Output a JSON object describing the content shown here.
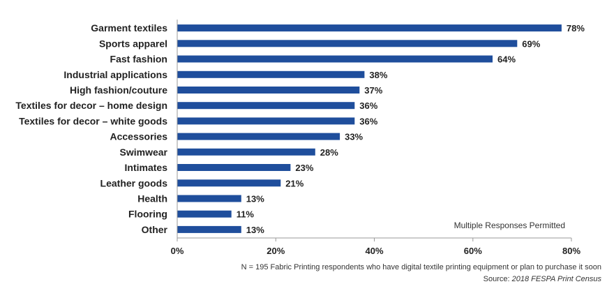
{
  "chart_data": {
    "type": "bar",
    "orientation": "horizontal",
    "categories": [
      "Garment textiles",
      "Sports apparel",
      "Fast fashion",
      "Industrial applications",
      "High fashion/couture",
      "Textiles for decor – home design",
      "Textiles for decor – white goods",
      "Accessories",
      "Swimwear",
      "Intimates",
      "Leather goods",
      "Health",
      "Flooring",
      "Other"
    ],
    "values": [
      78,
      69,
      64,
      38,
      37,
      36,
      36,
      33,
      28,
      23,
      21,
      13,
      11,
      13
    ],
    "value_labels": [
      "78%",
      "69%",
      "64%",
      "38%",
      "37%",
      "36%",
      "36%",
      "33%",
      "28%",
      "23%",
      "21%",
      "13%",
      "11%",
      "13%"
    ],
    "xlim": [
      0,
      80
    ],
    "xticks": [
      "0%",
      "20%",
      "40%",
      "60%",
      "80%"
    ],
    "bar_color": "#1f4e9c",
    "grid": false,
    "annotation": "Multiple Responses Permitted",
    "footnote": "N = 195 Fabric Printing respondents who have digital textile printing equipment or plan to purchase it soon",
    "source_prefix": "Source: ",
    "source_title": "2018 FESPA Print Census"
  }
}
